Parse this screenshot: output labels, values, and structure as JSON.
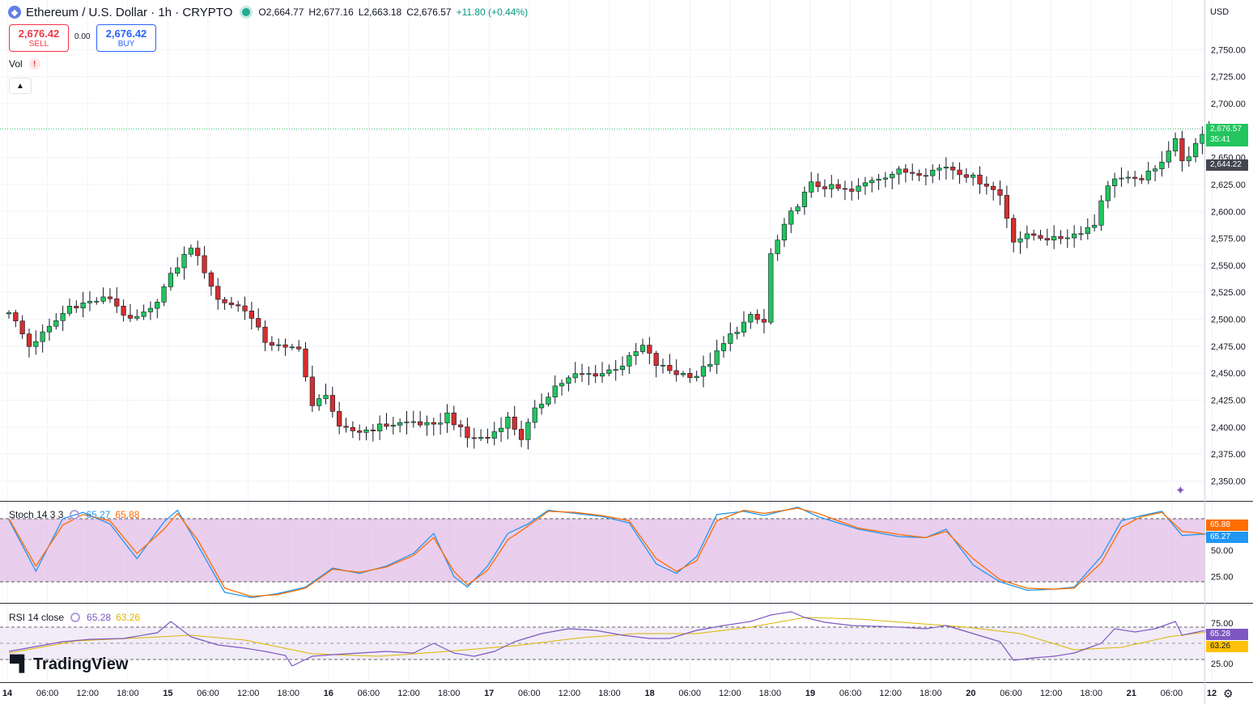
{
  "header": {
    "title": "Ethereum / U.S. Dollar · 1h · CRYPTO",
    "open": "O2,664.77",
    "high": "H2,677.16",
    "low": "L2,663.18",
    "close": "C2,676.57",
    "change": "+11.80 (+0.44%)"
  },
  "trade": {
    "sell_price": "2,676.42",
    "sell_label": "SELL",
    "spread": "0.00",
    "buy_price": "2,676.42",
    "buy_label": "BUY"
  },
  "vol_label": "Vol",
  "currency": "USD",
  "stoch": {
    "label": "Stoch 14 3 3",
    "k": "65.27",
    "d": "65.88"
  },
  "rsi": {
    "label": "RSI 14 close",
    "value": "65.28",
    "ma": "63.26"
  },
  "price_badge": {
    "price": "2,676.57",
    "countdown": "35:41",
    "high_line": "2,644.22"
  },
  "logo": "TradingView",
  "colors": {
    "up": "#22c55e",
    "down": "#d32f2f",
    "stoch_k": "#2196f3",
    "stoch_d": "#ff6d00",
    "rsi": "#7e57c2",
    "rsi_ma": "#ddb500",
    "band": "#e1bee7"
  },
  "chart_data": [
    {
      "type": "candlestick",
      "y_ticks": [
        2350,
        2375,
        2400,
        2425,
        2450,
        2475,
        2500,
        2525,
        2550,
        2575,
        2600,
        2625,
        2650,
        2675,
        2700,
        2725,
        2750
      ],
      "y_tick_labels": [
        "2,350.00",
        "2,375.00",
        "2,400.00",
        "2,425.00",
        "2,450.00",
        "2,475.00",
        "2,500.00",
        "2,525.00",
        "2,550.00",
        "2,575.00",
        "2,600.00",
        "2,625.00",
        "2,650.00",
        "2,675.00",
        "2,700.00",
        "2,725.00",
        "2,750.00"
      ],
      "x_tick_labels": [
        "14",
        "06:00",
        "12:00",
        "18:00",
        "15",
        "06:00",
        "12:00",
        "18:00",
        "16",
        "06:00",
        "12:00",
        "18:00",
        "17",
        "06:00",
        "12:00",
        "18:00",
        "18",
        "06:00",
        "12:00",
        "18:00",
        "19",
        "06:00",
        "12:00",
        "18:00",
        "20",
        "06:00",
        "12:00",
        "18:00",
        "21",
        "06:00",
        "12"
      ],
      "interval": "1h",
      "anchors": [
        [
          0,
          2508
        ],
        [
          3,
          2475
        ],
        [
          6,
          2492
        ],
        [
          9,
          2512
        ],
        [
          12,
          2516
        ],
        [
          15,
          2520
        ],
        [
          18,
          2498
        ],
        [
          21,
          2508
        ],
        [
          24,
          2540
        ],
        [
          27,
          2568
        ],
        [
          29,
          2545
        ],
        [
          31,
          2518
        ],
        [
          35,
          2510
        ],
        [
          38,
          2480
        ],
        [
          41,
          2472
        ],
        [
          43,
          2475
        ],
        [
          45,
          2418
        ],
        [
          47,
          2432
        ],
        [
          49,
          2398
        ],
        [
          52,
          2396
        ],
        [
          56,
          2402
        ],
        [
          60,
          2405
        ],
        [
          63,
          2400
        ],
        [
          65,
          2412
        ],
        [
          68,
          2390
        ],
        [
          71,
          2390
        ],
        [
          74,
          2408
        ],
        [
          76,
          2390
        ],
        [
          78,
          2415
        ],
        [
          81,
          2438
        ],
        [
          84,
          2448
        ],
        [
          88,
          2450
        ],
        [
          91,
          2458
        ],
        [
          94,
          2475
        ],
        [
          96,
          2458
        ],
        [
          99,
          2450
        ],
        [
          102,
          2448
        ],
        [
          104,
          2460
        ],
        [
          107,
          2485
        ],
        [
          110,
          2502
        ],
        [
          112,
          2497
        ],
        [
          113,
          2560
        ],
        [
          116,
          2598
        ],
        [
          119,
          2625
        ],
        [
          122,
          2622
        ],
        [
          125,
          2618
        ],
        [
          128,
          2630
        ],
        [
          132,
          2637
        ],
        [
          136,
          2636
        ],
        [
          139,
          2642
        ],
        [
          142,
          2634
        ],
        [
          145,
          2625
        ],
        [
          147,
          2615
        ],
        [
          149,
          2574
        ],
        [
          152,
          2578
        ],
        [
          155,
          2574
        ],
        [
          158,
          2579
        ],
        [
          161,
          2588
        ],
        [
          162,
          2612
        ],
        [
          164,
          2632
        ],
        [
          167,
          2628
        ],
        [
          170,
          2638
        ],
        [
          173,
          2668
        ],
        [
          174,
          2645
        ],
        [
          176,
          2661
        ],
        [
          178,
          2676.57
        ]
      ],
      "current_price": 2676.57,
      "high_line": 2644.22
    },
    {
      "type": "line",
      "name": "Stoch 14 3 3",
      "y_ticks": [
        25,
        50
      ],
      "bands": [
        20,
        80
      ],
      "series": [
        {
          "name": "K",
          "anchors": [
            [
              0,
              79
            ],
            [
              4,
              30
            ],
            [
              8,
              80
            ],
            [
              11,
              86
            ],
            [
              15,
              75
            ],
            [
              19,
              42
            ],
            [
              23,
              77
            ],
            [
              25,
              88
            ],
            [
              28,
              55
            ],
            [
              32,
              10
            ],
            [
              36,
              5
            ],
            [
              40,
              9
            ],
            [
              44,
              15
            ],
            [
              48,
              33
            ],
            [
              52,
              28
            ],
            [
              56,
              35
            ],
            [
              60,
              47
            ],
            [
              63,
              66
            ],
            [
              66,
              25
            ],
            [
              68,
              15
            ],
            [
              71,
              35
            ],
            [
              74,
              66
            ],
            [
              77,
              75
            ],
            [
              80,
              88
            ],
            [
              84,
              85
            ],
            [
              88,
              82
            ],
            [
              92,
              76
            ],
            [
              96,
              37
            ],
            [
              99,
              28
            ],
            [
              102,
              44
            ],
            [
              105,
              84
            ],
            [
              109,
              87
            ],
            [
              112,
              83
            ],
            [
              117,
              91
            ],
            [
              120,
              82
            ],
            [
              126,
              70
            ],
            [
              132,
              63
            ],
            [
              136,
              62
            ],
            [
              139,
              70
            ],
            [
              143,
              36
            ],
            [
              147,
              20
            ],
            [
              151,
              12
            ],
            [
              155,
              13
            ],
            [
              158,
              15
            ],
            [
              162,
              44
            ],
            [
              165,
              78
            ],
            [
              168,
              83
            ],
            [
              171,
              87
            ],
            [
              174,
              64
            ],
            [
              177,
              65.27
            ]
          ]
        },
        {
          "name": "D",
          "anchors": [
            [
              0,
              80
            ],
            [
              4,
              35
            ],
            [
              8,
              74
            ],
            [
              11,
              84
            ],
            [
              15,
              78
            ],
            [
              19,
              47
            ],
            [
              23,
              70
            ],
            [
              25,
              85
            ],
            [
              28,
              60
            ],
            [
              32,
              14
            ],
            [
              36,
              6
            ],
            [
              40,
              8
            ],
            [
              44,
              14
            ],
            [
              48,
              32
            ],
            [
              52,
              29
            ],
            [
              56,
              34
            ],
            [
              60,
              45
            ],
            [
              63,
              62
            ],
            [
              66,
              30
            ],
            [
              68,
              17
            ],
            [
              71,
              31
            ],
            [
              74,
              60
            ],
            [
              77,
              73
            ],
            [
              80,
              87
            ],
            [
              84,
              86
            ],
            [
              88,
              83
            ],
            [
              92,
              78
            ],
            [
              96,
              42
            ],
            [
              99,
              30
            ],
            [
              102,
              40
            ],
            [
              105,
              78
            ],
            [
              109,
              88
            ],
            [
              112,
              85
            ],
            [
              117,
              90
            ],
            [
              120,
              85
            ],
            [
              126,
              71
            ],
            [
              132,
              65
            ],
            [
              136,
              62
            ],
            [
              139,
              68
            ],
            [
              143,
              42
            ],
            [
              147,
              22
            ],
            [
              151,
              14
            ],
            [
              155,
              13
            ],
            [
              158,
              14
            ],
            [
              162,
              38
            ],
            [
              165,
              72
            ],
            [
              168,
              82
            ],
            [
              171,
              86
            ],
            [
              174,
              68
            ],
            [
              177,
              65.88
            ]
          ]
        }
      ]
    },
    {
      "type": "line",
      "name": "RSI 14 close",
      "y_ticks": [
        25,
        75
      ],
      "bands": [
        30,
        70
      ],
      "series": [
        {
          "name": "RSI",
          "anchors": [
            [
              0,
              40
            ],
            [
              4,
              46
            ],
            [
              8,
              52
            ],
            [
              12,
              55
            ],
            [
              17,
              56
            ],
            [
              22,
              63
            ],
            [
              24,
              77
            ],
            [
              27,
              58
            ],
            [
              31,
              48
            ],
            [
              35,
              44
            ],
            [
              38,
              40
            ],
            [
              41,
              35
            ],
            [
              42,
              22
            ],
            [
              45,
              34
            ],
            [
              48,
              36
            ],
            [
              52,
              38
            ],
            [
              56,
              40
            ],
            [
              60,
              38
            ],
            [
              63,
              50
            ],
            [
              66,
              38
            ],
            [
              69,
              34
            ],
            [
              72,
              40
            ],
            [
              75,
              52
            ],
            [
              79,
              62
            ],
            [
              83,
              68
            ],
            [
              87,
              66
            ],
            [
              91,
              60
            ],
            [
              95,
              56
            ],
            [
              98,
              56
            ],
            [
              102,
              66
            ],
            [
              106,
              72
            ],
            [
              110,
              77
            ],
            [
              113,
              85
            ],
            [
              116,
              89
            ],
            [
              118,
              82
            ],
            [
              121,
              76
            ],
            [
              125,
              72
            ],
            [
              129,
              71
            ],
            [
              132,
              70
            ],
            [
              136,
              68
            ],
            [
              139,
              72
            ],
            [
              143,
              62
            ],
            [
              147,
              52
            ],
            [
              149,
              29
            ],
            [
              152,
              32
            ],
            [
              155,
              34
            ],
            [
              158,
              38
            ],
            [
              162,
              50
            ],
            [
              164,
              68
            ],
            [
              167,
              64
            ],
            [
              170,
              68
            ],
            [
              173,
              77
            ],
            [
              174,
              60
            ],
            [
              177,
              65.28
            ]
          ]
        },
        {
          "name": "MA",
          "anchors": [
            [
              0,
              38
            ],
            [
              10,
              53
            ],
            [
              20,
              57
            ],
            [
              27,
              60
            ],
            [
              35,
              54
            ],
            [
              45,
              37
            ],
            [
              55,
              34
            ],
            [
              65,
              40
            ],
            [
              75,
              47
            ],
            [
              85,
              57
            ],
            [
              93,
              62
            ],
            [
              102,
              62
            ],
            [
              110,
              70
            ],
            [
              118,
              82
            ],
            [
              126,
              80
            ],
            [
              134,
              75
            ],
            [
              142,
              70
            ],
            [
              150,
              62
            ],
            [
              158,
              42
            ],
            [
              165,
              45
            ],
            [
              172,
              58
            ],
            [
              177,
              63.26
            ]
          ]
        }
      ]
    }
  ]
}
